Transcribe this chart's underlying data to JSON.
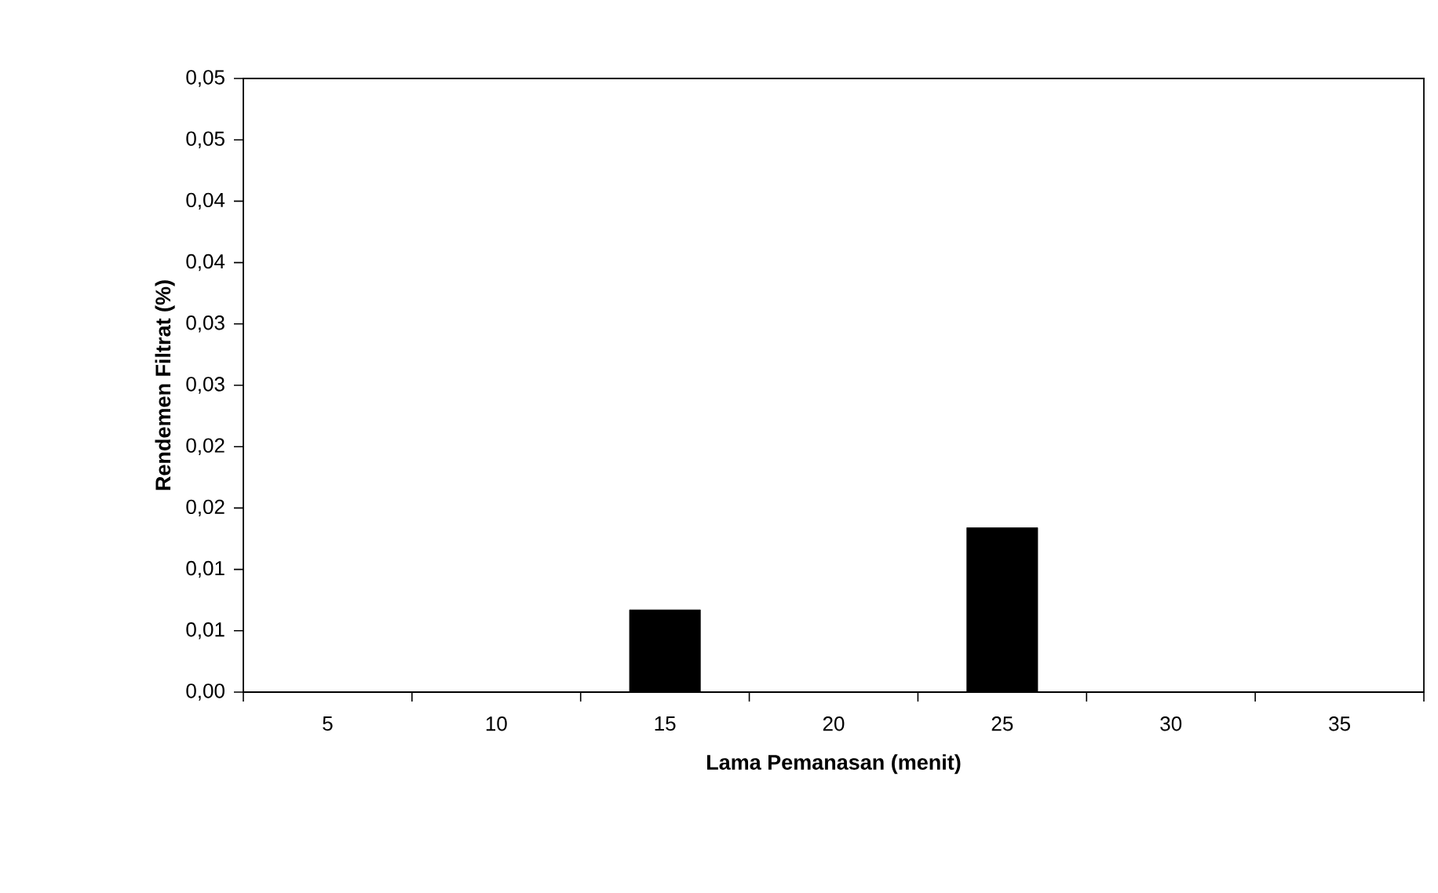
{
  "chart_data": {
    "type": "bar",
    "xlabel": "Lama Pemanasan (menit)",
    "ylabel": "Rendemen Filtrat (%)",
    "categories": [
      "5",
      "10",
      "15",
      "20",
      "25",
      "30",
      "35"
    ],
    "values": [
      0,
      0,
      0.0067,
      0,
      0.0134,
      0,
      0
    ],
    "color": "#000000",
    "ylim": [
      0,
      0.05
    ],
    "yticks": [
      {
        "value": 0,
        "label": "0,00"
      },
      {
        "value": 0.005,
        "label": "0,01"
      },
      {
        "value": 0.01,
        "label": "0,01"
      },
      {
        "value": 0.015,
        "label": "0,02"
      },
      {
        "value": 0.02,
        "label": "0,02"
      },
      {
        "value": 0.025,
        "label": "0,03"
      },
      {
        "value": 0.03,
        "label": "0,03"
      },
      {
        "value": 0.035,
        "label": "0,04"
      },
      {
        "value": 0.04,
        "label": "0,04"
      },
      {
        "value": 0.045,
        "label": "0,05"
      },
      {
        "value": 0.05,
        "label": "0,05"
      }
    ],
    "grid": false
  }
}
